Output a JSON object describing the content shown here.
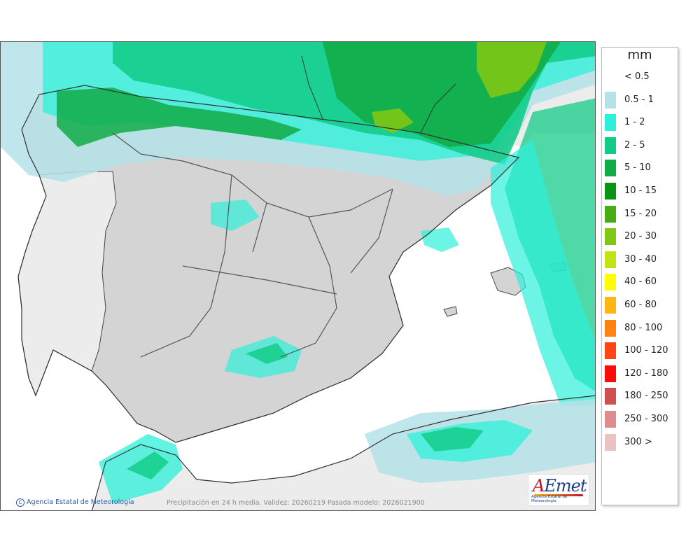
{
  "legend": {
    "unit": "mm",
    "items": [
      {
        "label": "< 0.5",
        "color": "#ffffff"
      },
      {
        "label": "0.5 - 1",
        "color": "#b4e2e6"
      },
      {
        "label": "1 - 2",
        "color": "#2ef0da"
      },
      {
        "label": "2 - 5",
        "color": "#14cc8a"
      },
      {
        "label": "5 - 10",
        "color": "#12ac48"
      },
      {
        "label": "10 - 15",
        "color": "#0b9414"
      },
      {
        "label": "15 - 20",
        "color": "#48ac14"
      },
      {
        "label": "20 - 30",
        "color": "#80c814"
      },
      {
        "label": "30 - 40",
        "color": "#c0e414"
      },
      {
        "label": "40 - 60",
        "color": "#fefe00"
      },
      {
        "label": "60 - 80",
        "color": "#feb614"
      },
      {
        "label": "80 - 100",
        "color": "#fe8214"
      },
      {
        "label": "100 - 120",
        "color": "#fe4614"
      },
      {
        "label": "120 - 180",
        "color": "#fe0a0a"
      },
      {
        "label": "180 - 250",
        "color": "#cf5050"
      },
      {
        "label": "250 - 300",
        "color": "#de8c8c"
      },
      {
        "label": "300 >",
        "color": "#ebc3c3"
      }
    ]
  },
  "footer": {
    "credit": "Agencia Estatal de Meteorología",
    "caption": "Precipitación en 24 h media. Validez: 20260219 Pasada modelo: 2026021900"
  },
  "logo": {
    "word_a": "A",
    "word_rest": "Emet",
    "subtitle": "Agencia Estatal de Meteorología"
  },
  "colors": {
    "land": "#d4d4d4",
    "land_outside": "#ececec",
    "sea": "#ffffff"
  }
}
